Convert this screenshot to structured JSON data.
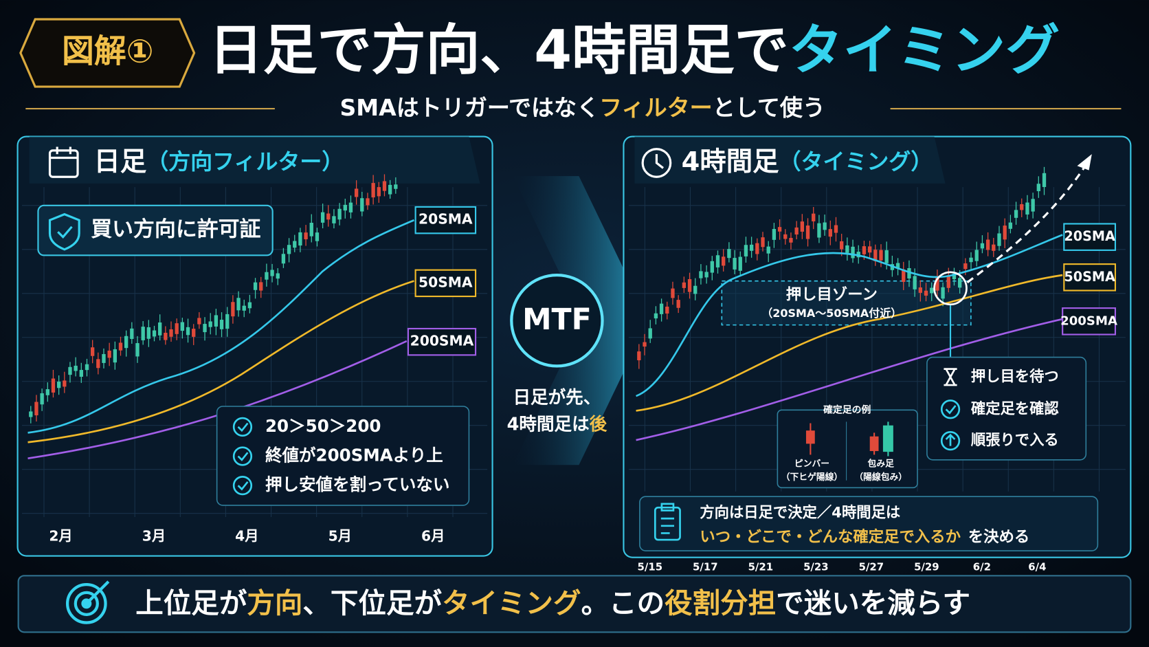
{
  "header": {
    "badge": "図解①",
    "title": {
      "main": "日足で方向、4時間足で",
      "accent": "タイミング"
    },
    "subtitle": {
      "before": "SMAはトリガーではなく",
      "accent": "フィルター",
      "after": "として使う"
    }
  },
  "left_panel": {
    "title": "日足",
    "subtitle": "（方向フィルター）",
    "badge": "買い方向に許可証",
    "sma_labels": [
      "20SMA",
      "50SMA",
      "200SMA"
    ],
    "checklist": [
      "20＞50＞200",
      "終値が200SMAより上",
      "押し安値を割っていない"
    ],
    "x_labels": [
      "2月",
      "3月",
      "4月",
      "5月",
      "6月"
    ]
  },
  "center": {
    "label": "MTF",
    "note": {
      "line1": "日足が先、",
      "line2": "4時間足は",
      "accent": "後"
    }
  },
  "right_panel": {
    "title": "4時間足",
    "subtitle": "（タイミング）",
    "zone": {
      "label": "押し目ゾーン",
      "sub": "（20SMA〜50SMA付近）"
    },
    "sma_labels": [
      "20SMA",
      "50SMA",
      "200SMA"
    ],
    "steps": [
      "押し目を待つ",
      "確定足を確認",
      "順張りで入る"
    ],
    "example": {
      "title": "確定足の例",
      "items": [
        {
          "name": "ピンバー",
          "desc": "（下ヒゲ陽線）"
        },
        {
          "name": "包み足",
          "desc": "（陽線包み）"
        }
      ]
    },
    "note": {
      "line1": "方向は日足で決定／4時間足は",
      "accent": "いつ・どこで・どんな確定足で入るか",
      "after": "を決める"
    },
    "x_labels": [
      "5/15",
      "5/17",
      "5/21",
      "5/23",
      "5/27",
      "5/29",
      "6/2",
      "6/4"
    ]
  },
  "footer": {
    "parts": [
      "上位足が",
      "方向",
      "、下位足が",
      "タイミング",
      "。この",
      "役割分担",
      "で迷いを減らす"
    ]
  }
}
